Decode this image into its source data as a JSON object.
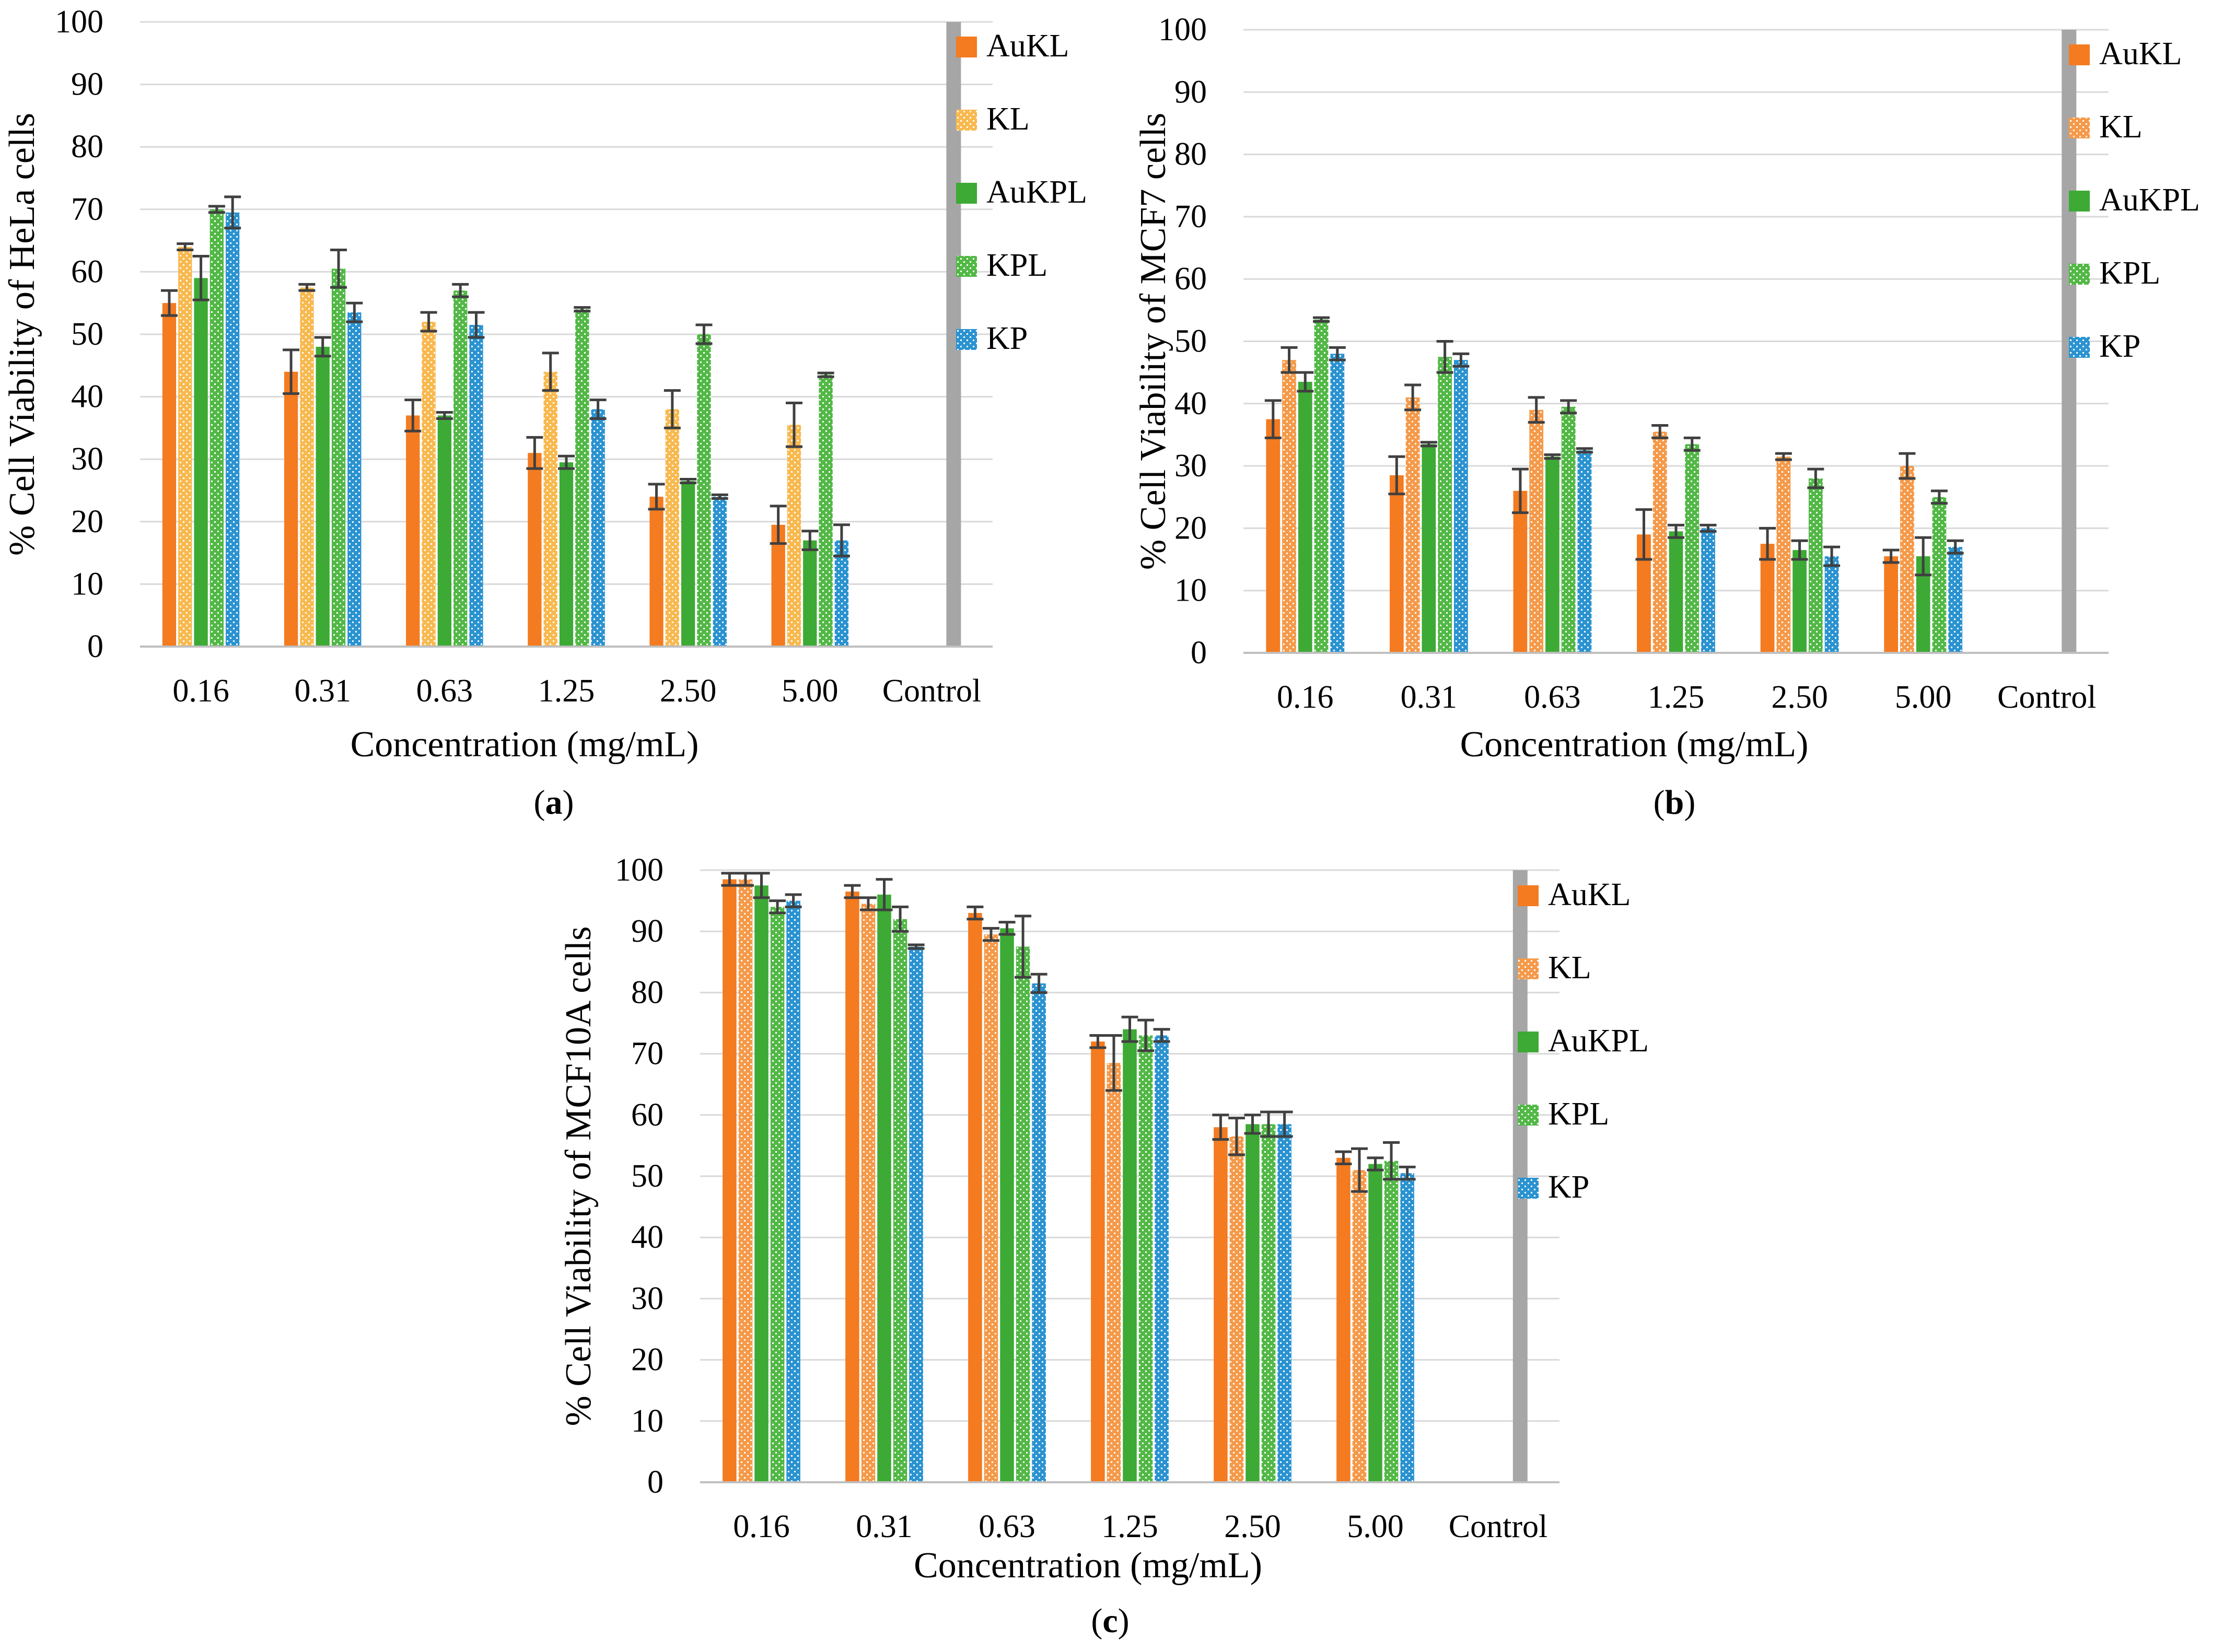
{
  "colors": {
    "AuKL": "#F47B20",
    "KL": "#F59A4A",
    "KL_light": "#F8B94F",
    "AuKPL": "#3DAA35",
    "KPL": "#52B846",
    "KP": "#2B93D1",
    "Control": "#A6A6A6",
    "grid": "#D9D9D9",
    "axis": "#BFBFBF",
    "error": "#404040",
    "text": "#000000"
  },
  "legend_labels": [
    "AuKL",
    "KL",
    "AuKPL",
    "KPL",
    "KP"
  ],
  "chart_data": [
    {
      "type": "bar",
      "panel": "(a)",
      "panel_letter": "a",
      "title": "",
      "xlabel": "Concentration (mg/mL)",
      "ylabel": "% Cell Viability of HeLa cells",
      "ylim": [
        0,
        100
      ],
      "yticks": [
        "0",
        "10",
        "20",
        "30",
        "40",
        "50",
        "60",
        "70",
        "80",
        "90",
        "100"
      ],
      "categories": [
        "0.16",
        "0.31",
        "0.63",
        "1.25",
        "2.50",
        "5.00",
        "Control"
      ],
      "kl_style": "light",
      "series": [
        {
          "name": "AuKL",
          "values": [
            55,
            44,
            37,
            31,
            24,
            19.5,
            null
          ],
          "errors": [
            2,
            3.5,
            2.5,
            2.5,
            2,
            3
          ]
        },
        {
          "name": "KL",
          "values": [
            64,
            57.5,
            52,
            44,
            38,
            35.5,
            null
          ],
          "errors": [
            0.5,
            0.5,
            1.5,
            3,
            3,
            3.5
          ]
        },
        {
          "name": "AuKPL",
          "values": [
            59,
            48,
            37,
            29.5,
            26.5,
            17,
            null
          ],
          "errors": [
            3.5,
            1.5,
            0.5,
            1,
            0.3,
            1.5
          ]
        },
        {
          "name": "KPL",
          "values": [
            70,
            60.5,
            57,
            54,
            50,
            43.5,
            null
          ],
          "errors": [
            0.5,
            3,
            1,
            0.3,
            1.5,
            0.3
          ]
        },
        {
          "name": "KP",
          "values": [
            69.5,
            53.5,
            51.5,
            38,
            24,
            17,
            null
          ],
          "errors": [
            2.5,
            1.5,
            2,
            1.5,
            0.3,
            2.5
          ]
        }
      ],
      "control_value": 100
    },
    {
      "type": "bar",
      "panel": "(b)",
      "panel_letter": "b",
      "title": "",
      "xlabel": "Concentration (mg/mL)",
      "ylabel": "% Cell Viability of MCF7 cells",
      "ylim": [
        0,
        100
      ],
      "yticks": [
        "0",
        "10",
        "20",
        "30",
        "40",
        "50",
        "60",
        "70",
        "80",
        "90",
        "100"
      ],
      "categories": [
        "0.16",
        "0.31",
        "0.63",
        "1.25",
        "2.50",
        "5.00",
        "Control"
      ],
      "kl_style": "orange",
      "series": [
        {
          "name": "AuKL",
          "values": [
            37.5,
            28.5,
            26,
            19,
            17.5,
            15.5,
            null
          ],
          "errors": [
            3,
            3,
            3.5,
            4,
            2.5,
            1
          ]
        },
        {
          "name": "KL",
          "values": [
            47,
            41,
            39,
            35.5,
            31.5,
            30,
            null
          ],
          "errors": [
            2,
            2,
            2,
            1,
            0.5,
            2
          ]
        },
        {
          "name": "AuKPL",
          "values": [
            43.5,
            33.5,
            31.5,
            19.5,
            16.5,
            15.5,
            null
          ],
          "errors": [
            1.5,
            0.3,
            0.3,
            1,
            1.5,
            3
          ]
        },
        {
          "name": "KPL",
          "values": [
            53.5,
            47.5,
            39.5,
            33.5,
            28,
            25,
            null
          ],
          "errors": [
            0.3,
            2.5,
            1,
            1,
            1.5,
            1
          ]
        },
        {
          "name": "KP",
          "values": [
            48,
            47,
            32.5,
            20,
            15.5,
            17,
            null
          ],
          "errors": [
            1,
            1,
            0.3,
            0.5,
            1.5,
            1
          ]
        }
      ],
      "control_value": 100
    },
    {
      "type": "bar",
      "panel": "(c)",
      "panel_letter": "c",
      "title": "",
      "xlabel": "Concentration (mg/mL)",
      "ylabel": "% Cell Viability of MCF10A cells",
      "ylim": [
        0,
        100
      ],
      "yticks": [
        "0",
        "10",
        "20",
        "30",
        "40",
        "50",
        "60",
        "70",
        "80",
        "90",
        "100"
      ],
      "categories": [
        "0.16",
        "0.31",
        "0.63",
        "1.25",
        "2.50",
        "5.00",
        "Control"
      ],
      "kl_style": "orange",
      "series": [
        {
          "name": "AuKL",
          "values": [
            98.5,
            96.5,
            93,
            72,
            58,
            53,
            null
          ],
          "errors": [
            1,
            1,
            1,
            1,
            2,
            1
          ]
        },
        {
          "name": "KL",
          "values": [
            98.5,
            94.5,
            89.5,
            68.5,
            56.5,
            51,
            null
          ],
          "errors": [
            1,
            1,
            1,
            4.5,
            3,
            3.5
          ]
        },
        {
          "name": "AuKPL",
          "values": [
            97.5,
            96,
            90.5,
            74,
            58.5,
            52,
            null
          ],
          "errors": [
            2,
            2.5,
            1,
            2,
            1.5,
            1
          ]
        },
        {
          "name": "KPL",
          "values": [
            94,
            92,
            87.5,
            73,
            58.5,
            52.5,
            null
          ],
          "errors": [
            1,
            2,
            5,
            2.5,
            2,
            3
          ]
        },
        {
          "name": "KP",
          "values": [
            95,
            87.5,
            81.5,
            73,
            58.5,
            50.5,
            null
          ],
          "errors": [
            1,
            0.3,
            1.5,
            1,
            2,
            1
          ]
        }
      ],
      "control_value": 100
    }
  ]
}
